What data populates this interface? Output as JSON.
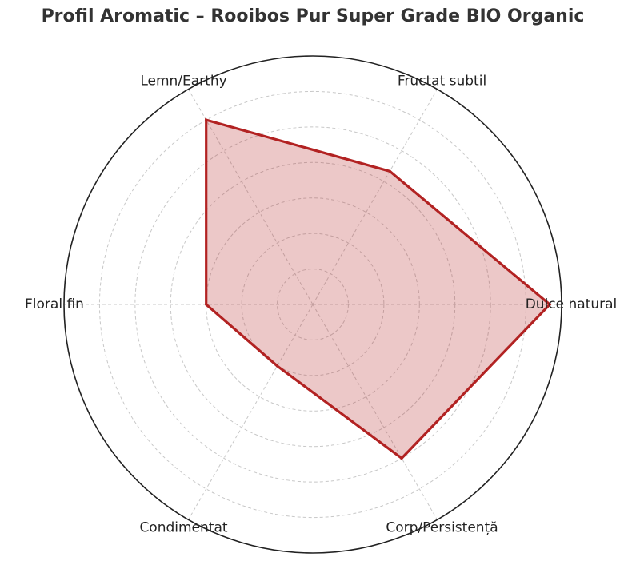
{
  "chart_data": {
    "type": "radar",
    "title": "Profil Aromatic – Rooibos Pur Super Grade BIO Organic",
    "categories": [
      "Dulce natural",
      "Fructat subtil",
      "Lemn/Earthy",
      "Floral fin",
      "Condimentat",
      "Corp/Persistență"
    ],
    "series": [
      {
        "values": [
          10,
          6.5,
          9,
          4.5,
          3,
          7.5
        ]
      }
    ],
    "rlim": [
      0,
      10.5
    ],
    "rings": [
      1.5,
      3,
      4.5,
      6,
      7.5,
      9,
      10.5
    ],
    "grid": true,
    "colors": {
      "line": "#b22222",
      "fill": "#b22222",
      "grid": "#c8c8c8",
      "frame": "#222222"
    }
  }
}
